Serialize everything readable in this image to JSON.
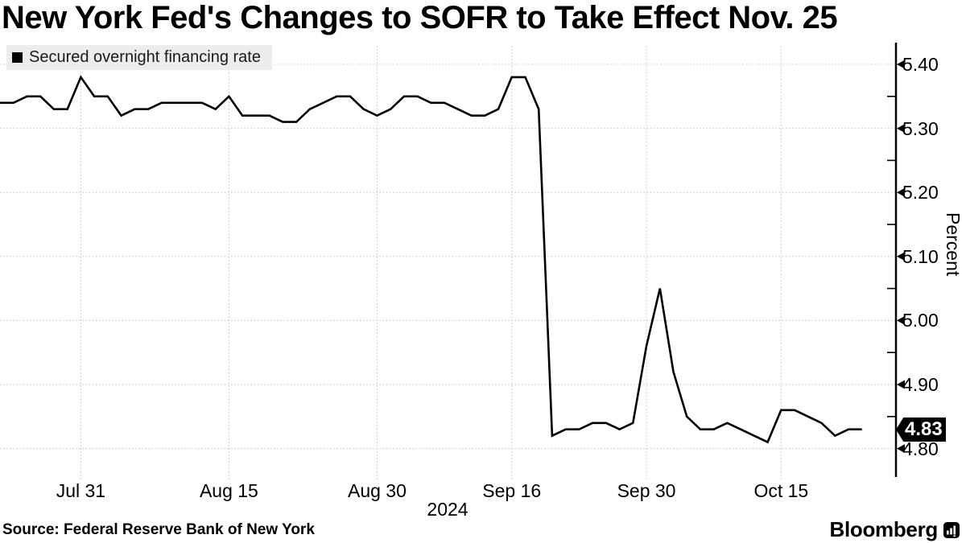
{
  "title": "New York Fed's Changes to SOFR to Take Effect Nov. 25",
  "legend": {
    "label": "Secured overnight financing rate"
  },
  "y_axis": {
    "unit_label": "Percent",
    "tick_labels": [
      "5.40",
      "5.30",
      "5.20",
      "5.10",
      "5.00",
      "4.90",
      "4.80"
    ],
    "minor_tick_values": [
      5.35,
      5.25,
      5.15,
      5.05,
      4.95,
      4.85
    ],
    "last_value_badge": "4.83"
  },
  "x_axis": {
    "tick_labels": [
      "Jul 31",
      "Aug 15",
      "Aug 30",
      "Sep 16",
      "Sep 30",
      "Oct 15"
    ],
    "year_label": "2024"
  },
  "footer": {
    "source": "Source: Federal Reserve Bank of New York",
    "brand": "Bloomberg",
    "brand_icon": "bar-chart-icon"
  },
  "colors": {
    "line": "#000000",
    "grid": "#c2c2c2",
    "legend_bg": "#ededed",
    "badge_bg": "#000000",
    "badge_text": "#ffffff",
    "text": "#000000"
  },
  "chart_data": {
    "type": "line",
    "title": "New York Fed's Changes to SOFR to Take Effect Nov. 25",
    "series_name": "Secured overnight financing rate",
    "unit": "Percent",
    "ylim": [
      4.77,
      5.44
    ],
    "y_major_step": 0.1,
    "grid": "dotted",
    "legend_position": "top-left",
    "axis_side": "right",
    "x_tick_dates": [
      "2024-07-31",
      "2024-08-15",
      "2024-08-30",
      "2024-09-16",
      "2024-09-30",
      "2024-10-15"
    ],
    "last_value": 4.83,
    "points": [
      [
        "2024-07-23",
        5.34
      ],
      [
        "2024-07-24",
        5.34
      ],
      [
        "2024-07-25",
        5.35
      ],
      [
        "2024-07-26",
        5.35
      ],
      [
        "2024-07-29",
        5.33
      ],
      [
        "2024-07-30",
        5.33
      ],
      [
        "2024-07-31",
        5.38
      ],
      [
        "2024-08-01",
        5.35
      ],
      [
        "2024-08-02",
        5.35
      ],
      [
        "2024-08-05",
        5.32
      ],
      [
        "2024-08-06",
        5.33
      ],
      [
        "2024-08-07",
        5.33
      ],
      [
        "2024-08-08",
        5.34
      ],
      [
        "2024-08-09",
        5.34
      ],
      [
        "2024-08-12",
        5.34
      ],
      [
        "2024-08-13",
        5.34
      ],
      [
        "2024-08-14",
        5.33
      ],
      [
        "2024-08-15",
        5.35
      ],
      [
        "2024-08-16",
        5.32
      ],
      [
        "2024-08-19",
        5.32
      ],
      [
        "2024-08-20",
        5.32
      ],
      [
        "2024-08-21",
        5.31
      ],
      [
        "2024-08-22",
        5.31
      ],
      [
        "2024-08-23",
        5.33
      ],
      [
        "2024-08-26",
        5.34
      ],
      [
        "2024-08-27",
        5.35
      ],
      [
        "2024-08-28",
        5.35
      ],
      [
        "2024-08-29",
        5.33
      ],
      [
        "2024-08-30",
        5.32
      ],
      [
        "2024-09-03",
        5.33
      ],
      [
        "2024-09-04",
        5.35
      ],
      [
        "2024-09-05",
        5.35
      ],
      [
        "2024-09-06",
        5.34
      ],
      [
        "2024-09-09",
        5.34
      ],
      [
        "2024-09-10",
        5.33
      ],
      [
        "2024-09-11",
        5.32
      ],
      [
        "2024-09-12",
        5.32
      ],
      [
        "2024-09-13",
        5.33
      ],
      [
        "2024-09-16",
        5.38
      ],
      [
        "2024-09-17",
        5.38
      ],
      [
        "2024-09-18",
        5.33
      ],
      [
        "2024-09-19",
        4.82
      ],
      [
        "2024-09-20",
        4.83
      ],
      [
        "2024-09-23",
        4.83
      ],
      [
        "2024-09-24",
        4.84
      ],
      [
        "2024-09-25",
        4.84
      ],
      [
        "2024-09-26",
        4.83
      ],
      [
        "2024-09-27",
        4.84
      ],
      [
        "2024-09-30",
        4.96
      ],
      [
        "2024-10-01",
        5.05
      ],
      [
        "2024-10-02",
        4.92
      ],
      [
        "2024-10-03",
        4.85
      ],
      [
        "2024-10-04",
        4.83
      ],
      [
        "2024-10-07",
        4.83
      ],
      [
        "2024-10-08",
        4.84
      ],
      [
        "2024-10-09",
        4.83
      ],
      [
        "2024-10-10",
        4.82
      ],
      [
        "2024-10-11",
        4.81
      ],
      [
        "2024-10-15",
        4.86
      ],
      [
        "2024-10-16",
        4.86
      ],
      [
        "2024-10-17",
        4.85
      ],
      [
        "2024-10-18",
        4.84
      ],
      [
        "2024-10-21",
        4.82
      ],
      [
        "2024-10-22",
        4.83
      ],
      [
        "2024-10-23",
        4.83
      ]
    ]
  }
}
